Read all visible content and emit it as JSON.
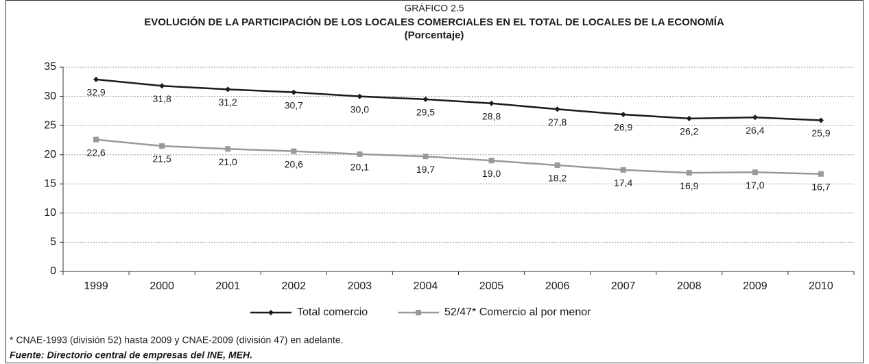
{
  "chart_data": {
    "type": "line",
    "supertitle": "GRÁFICO 2.5",
    "title": "EVOLUCIÓN DE LA PARTICIPACIÓN DE LOS LOCALES COMERCIALES EN EL TOTAL DE LOCALES DE LA ECONOMÍA",
    "subtitle": "(Porcentaje)",
    "categories": [
      "1999",
      "2000",
      "2001",
      "2002",
      "2003",
      "2004",
      "2005",
      "2006",
      "2007",
      "2008",
      "2009",
      "2010"
    ],
    "series": [
      {
        "name": "Total comercio",
        "color": "#1a1a1a",
        "marker": "diamond",
        "values": [
          32.9,
          31.8,
          31.2,
          30.7,
          30.0,
          29.5,
          28.8,
          27.8,
          26.9,
          26.2,
          26.4,
          25.9
        ],
        "value_labels": [
          "32,9",
          "31,8",
          "31,2",
          "30,7",
          "30,0",
          "29,5",
          "28,8",
          "27,8",
          "26,9",
          "26,2",
          "26,4",
          "25,9"
        ]
      },
      {
        "name": "52/47* Comercio al por menor",
        "color": "#999999",
        "marker": "square",
        "values": [
          22.6,
          21.5,
          21.0,
          20.6,
          20.1,
          19.7,
          19.0,
          18.2,
          17.4,
          16.9,
          17.0,
          16.7
        ],
        "value_labels": [
          "22,6",
          "21,5",
          "21,0",
          "20,6",
          "20,1",
          "19,7",
          "19,0",
          "18,2",
          "17,4",
          "16,9",
          "17,0",
          "16,7"
        ]
      }
    ],
    "ylim": [
      0,
      35
    ],
    "yticks": [
      0,
      5,
      10,
      15,
      20,
      25,
      30,
      35
    ],
    "grid": true,
    "legend": "bottom",
    "footnote": "* CNAE-1993 (división 52) hasta 2009 y CNAE-2009 (división 47) en adelante.",
    "source": "Fuente: Directorio central de empresas del INE, MEH."
  }
}
